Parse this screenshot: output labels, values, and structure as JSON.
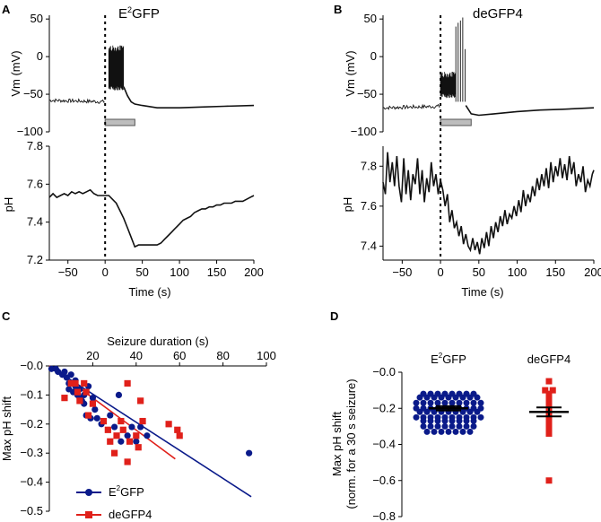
{
  "panels": {
    "A": {
      "letter": "A",
      "title_main": "E",
      "title_sup": "2",
      "title_rest": "GFP"
    },
    "B": {
      "letter": "B",
      "title": "deGFP4"
    },
    "C": {
      "letter": "C"
    },
    "D": {
      "letter": "D"
    }
  },
  "chart_data": [
    {
      "panel": "A-top",
      "type": "line",
      "ylabel": "Vm (mV)",
      "yticks": [
        -100,
        -50,
        0,
        50
      ],
      "ylim": [
        -100,
        55
      ],
      "xlim": [
        -75,
        200
      ],
      "baseline": [
        [
          -75,
          -58
        ],
        [
          -20,
          -58
        ],
        [
          -2,
          -59
        ],
        [
          0,
          -60
        ]
      ],
      "burst_range": [
        5,
        25
      ],
      "burst_high": 15,
      "burst_low": -45,
      "recovery": [
        [
          25,
          -40
        ],
        [
          30,
          -52
        ],
        [
          35,
          -60
        ],
        [
          40,
          -63
        ],
        [
          50,
          -65
        ],
        [
          70,
          -68
        ],
        [
          100,
          -68
        ],
        [
          130,
          -67
        ],
        [
          160,
          -66
        ],
        [
          200,
          -65
        ]
      ],
      "bar_range": [
        0,
        40
      ],
      "seizure_onset": 0
    },
    {
      "panel": "A-bottom",
      "type": "line",
      "ylabel": "pH",
      "xlabel": "Time (s)",
      "yticks": [
        7.2,
        7.4,
        7.6,
        7.8
      ],
      "xticks": [
        -50,
        0,
        50,
        100,
        150,
        200
      ],
      "ylim": [
        7.2,
        7.8
      ],
      "xlim": [
        -75,
        200
      ],
      "points": [
        [
          -75,
          7.53
        ],
        [
          -70,
          7.55
        ],
        [
          -65,
          7.53
        ],
        [
          -60,
          7.54
        ],
        [
          -55,
          7.55
        ],
        [
          -50,
          7.54
        ],
        [
          -45,
          7.56
        ],
        [
          -40,
          7.55
        ],
        [
          -35,
          7.56
        ],
        [
          -30,
          7.55
        ],
        [
          -25,
          7.56
        ],
        [
          -20,
          7.57
        ],
        [
          -15,
          7.55
        ],
        [
          -10,
          7.54
        ],
        [
          -5,
          7.54
        ],
        [
          0,
          7.54
        ],
        [
          5,
          7.54
        ],
        [
          10,
          7.52
        ],
        [
          15,
          7.5
        ],
        [
          20,
          7.46
        ],
        [
          25,
          7.42
        ],
        [
          30,
          7.37
        ],
        [
          35,
          7.32
        ],
        [
          40,
          7.27
        ],
        [
          45,
          7.28
        ],
        [
          50,
          7.28
        ],
        [
          55,
          7.28
        ],
        [
          60,
          7.28
        ],
        [
          65,
          7.28
        ],
        [
          70,
          7.28
        ],
        [
          75,
          7.29
        ],
        [
          80,
          7.31
        ],
        [
          85,
          7.33
        ],
        [
          90,
          7.35
        ],
        [
          95,
          7.37
        ],
        [
          100,
          7.39
        ],
        [
          105,
          7.41
        ],
        [
          110,
          7.42
        ],
        [
          115,
          7.43
        ],
        [
          120,
          7.45
        ],
        [
          125,
          7.46
        ],
        [
          130,
          7.47
        ],
        [
          135,
          7.47
        ],
        [
          140,
          7.48
        ],
        [
          145,
          7.48
        ],
        [
          150,
          7.49
        ],
        [
          155,
          7.49
        ],
        [
          160,
          7.5
        ],
        [
          165,
          7.5
        ],
        [
          170,
          7.5
        ],
        [
          175,
          7.51
        ],
        [
          180,
          7.51
        ],
        [
          185,
          7.51
        ],
        [
          190,
          7.52
        ],
        [
          195,
          7.53
        ],
        [
          200,
          7.54
        ]
      ]
    },
    {
      "panel": "B-top",
      "type": "line",
      "ylabel": "Vm (mV)",
      "yticks": [
        -100,
        -50,
        0,
        50
      ],
      "ylim": [
        -100,
        55
      ],
      "xlim": [
        -75,
        200
      ],
      "baseline": [
        [
          -75,
          -68
        ],
        [
          -20,
          -68
        ],
        [
          -2,
          -67
        ],
        [
          0,
          -66
        ]
      ],
      "burst_range": [
        0,
        20
      ],
      "burst_high": -20,
      "burst_low": -55,
      "spikes": [
        [
          20,
          40
        ],
        [
          23,
          45
        ],
        [
          26,
          48
        ],
        [
          29,
          52
        ],
        [
          32,
          10
        ]
      ],
      "recovery": [
        [
          33,
          -65
        ],
        [
          40,
          -76
        ],
        [
          50,
          -78
        ],
        [
          70,
          -76
        ],
        [
          100,
          -73
        ],
        [
          130,
          -71
        ],
        [
          160,
          -70
        ],
        [
          200,
          -68
        ]
      ],
      "bar_range": [
        0,
        40
      ],
      "seizure_onset": 0
    },
    {
      "panel": "B-bottom",
      "type": "line",
      "ylabel": "pH",
      "xlabel": "Time (s)",
      "yticks": [
        7.4,
        7.6,
        7.8
      ],
      "xticks": [
        -50,
        0,
        50,
        100,
        150,
        200
      ],
      "ylim": [
        7.33,
        7.9
      ],
      "xlim": [
        -75,
        200
      ],
      "points": [
        [
          -75,
          7.72
        ],
        [
          -72,
          7.66
        ],
        [
          -69,
          7.87
        ],
        [
          -66,
          7.72
        ],
        [
          -63,
          7.82
        ],
        [
          -60,
          7.7
        ],
        [
          -57,
          7.85
        ],
        [
          -54,
          7.7
        ],
        [
          -51,
          7.62
        ],
        [
          -48,
          7.84
        ],
        [
          -45,
          7.66
        ],
        [
          -42,
          7.78
        ],
        [
          -39,
          7.63
        ],
        [
          -36,
          7.76
        ],
        [
          -33,
          7.71
        ],
        [
          -30,
          7.84
        ],
        [
          -27,
          7.66
        ],
        [
          -24,
          7.78
        ],
        [
          -21,
          7.62
        ],
        [
          -18,
          7.74
        ],
        [
          -15,
          7.67
        ],
        [
          -12,
          7.82
        ],
        [
          -9,
          7.7
        ],
        [
          -6,
          7.76
        ],
        [
          -3,
          7.66
        ],
        [
          0,
          7.73
        ],
        [
          3,
          7.68
        ],
        [
          6,
          7.6
        ],
        [
          9,
          7.66
        ],
        [
          12,
          7.52
        ],
        [
          15,
          7.58
        ],
        [
          18,
          7.49
        ],
        [
          21,
          7.52
        ],
        [
          24,
          7.45
        ],
        [
          27,
          7.5
        ],
        [
          30,
          7.41
        ],
        [
          33,
          7.46
        ],
        [
          36,
          7.4
        ],
        [
          39,
          7.38
        ],
        [
          42,
          7.44
        ],
        [
          45,
          7.38
        ],
        [
          48,
          7.42
        ],
        [
          51,
          7.36
        ],
        [
          54,
          7.44
        ],
        [
          57,
          7.39
        ],
        [
          60,
          7.47
        ],
        [
          63,
          7.4
        ],
        [
          66,
          7.5
        ],
        [
          69,
          7.44
        ],
        [
          72,
          7.52
        ],
        [
          75,
          7.47
        ],
        [
          78,
          7.55
        ],
        [
          81,
          7.5
        ],
        [
          84,
          7.58
        ],
        [
          87,
          7.51
        ],
        [
          90,
          7.56
        ],
        [
          93,
          7.54
        ],
        [
          96,
          7.6
        ],
        [
          99,
          7.55
        ],
        [
          102,
          7.63
        ],
        [
          105,
          7.57
        ],
        [
          108,
          7.68
        ],
        [
          111,
          7.6
        ],
        [
          114,
          7.66
        ],
        [
          117,
          7.62
        ],
        [
          120,
          7.7
        ],
        [
          123,
          7.65
        ],
        [
          126,
          7.74
        ],
        [
          129,
          7.68
        ],
        [
          132,
          7.76
        ],
        [
          135,
          7.7
        ],
        [
          138,
          7.79
        ],
        [
          141,
          7.69
        ],
        [
          144,
          7.82
        ],
        [
          147,
          7.72
        ],
        [
          150,
          7.8
        ],
        [
          153,
          7.75
        ],
        [
          156,
          7.84
        ],
        [
          159,
          7.74
        ],
        [
          162,
          7.81
        ],
        [
          165,
          7.73
        ],
        [
          168,
          7.85
        ],
        [
          171,
          7.76
        ],
        [
          174,
          7.82
        ],
        [
          177,
          7.7
        ],
        [
          180,
          7.76
        ],
        [
          183,
          7.72
        ],
        [
          186,
          7.8
        ],
        [
          189,
          7.67
        ],
        [
          192,
          7.73
        ],
        [
          195,
          7.7
        ],
        [
          198,
          7.76
        ],
        [
          200,
          7.78
        ]
      ]
    },
    {
      "panel": "C",
      "type": "scatter",
      "xlabel": "Seizure duration (s)",
      "ylabel": "Max pH shift",
      "xticks": [
        20,
        40,
        60,
        80,
        100
      ],
      "yticks": [
        -0.0,
        -0.1,
        -0.2,
        -0.3,
        -0.4,
        -0.5
      ],
      "xlim": [
        0,
        100
      ],
      "ylim": [
        -0.5,
        0
      ],
      "series": [
        {
          "name": "E²GFP",
          "legend_main": "E",
          "legend_sup": "2",
          "legend_rest": "GFP",
          "color": "#0a1a8a",
          "marker": "circle",
          "points": [
            [
              1,
              -0.01
            ],
            [
              3,
              -0.01
            ],
            [
              4,
              -0.02
            ],
            [
              6,
              -0.03
            ],
            [
              7,
              -0.02
            ],
            [
              8,
              -0.04
            ],
            [
              9,
              -0.06
            ],
            [
              9,
              -0.08
            ],
            [
              10,
              -0.03
            ],
            [
              11,
              -0.09
            ],
            [
              12,
              -0.05
            ],
            [
              12,
              -0.07
            ],
            [
              13,
              -0.1
            ],
            [
              14,
              -0.11
            ],
            [
              14,
              -0.08
            ],
            [
              15,
              -0.12
            ],
            [
              16,
              -0.1
            ],
            [
              16,
              -0.13
            ],
            [
              17,
              -0.17
            ],
            [
              18,
              -0.07
            ],
            [
              19,
              -0.18
            ],
            [
              20,
              -0.11
            ],
            [
              21,
              -0.15
            ],
            [
              22,
              -0.18
            ],
            [
              24,
              -0.2
            ],
            [
              28,
              -0.17
            ],
            [
              30,
              -0.21
            ],
            [
              32,
              -0.1
            ],
            [
              33,
              -0.26
            ],
            [
              36,
              -0.24
            ],
            [
              38,
              -0.21
            ],
            [
              40,
              -0.26
            ],
            [
              42,
              -0.21
            ],
            [
              45,
              -0.24
            ],
            [
              92,
              -0.3
            ]
          ],
          "fit": [
            [
              0,
              0
            ],
            [
              93,
              -0.45
            ]
          ]
        },
        {
          "name": "deGFP4",
          "color": "#e0201a",
          "marker": "square",
          "points": [
            [
              7,
              -0.11
            ],
            [
              10,
              -0.06
            ],
            [
              12,
              -0.06
            ],
            [
              13,
              -0.09
            ],
            [
              14,
              -0.12
            ],
            [
              16,
              -0.06
            ],
            [
              17,
              -0.09
            ],
            [
              18,
              -0.17
            ],
            [
              20,
              -0.13
            ],
            [
              25,
              -0.19
            ],
            [
              27,
              -0.22
            ],
            [
              28,
              -0.26
            ],
            [
              30,
              -0.3
            ],
            [
              31,
              -0.24
            ],
            [
              33,
              -0.19
            ],
            [
              34,
              -0.22
            ],
            [
              36,
              -0.06
            ],
            [
              36,
              -0.33
            ],
            [
              37,
              -0.26
            ],
            [
              40,
              -0.24
            ],
            [
              41,
              -0.28
            ],
            [
              42,
              -0.12
            ],
            [
              43,
              -0.19
            ],
            [
              55,
              -0.2
            ],
            [
              59,
              -0.22
            ],
            [
              60,
              -0.24
            ]
          ],
          "fit": [
            [
              0,
              0
            ],
            [
              58,
              -0.32
            ]
          ]
        }
      ]
    },
    {
      "panel": "D",
      "type": "scatter",
      "ylabel": "Max pH shift",
      "ylabel2": "(norm. for a 30 s seizure)",
      "categories": [
        "E²GFP",
        "deGFP4"
      ],
      "cat_label_parts": [
        {
          "main": "E",
          "sup": "2",
          "rest": "GFP"
        },
        {
          "main": "deGFP4",
          "sup": "",
          "rest": ""
        }
      ],
      "yticks": [
        -0.0,
        -0.2,
        -0.4,
        -0.6,
        -0.8
      ],
      "ylim": [
        -0.8,
        0
      ],
      "groups": [
        {
          "name": "E²GFP",
          "color": "#0a1a8a",
          "marker": "circle",
          "mean": -0.2,
          "sem": 0.012,
          "values": [
            -0.12,
            -0.12,
            -0.12,
            -0.12,
            -0.12,
            -0.12,
            -0.12,
            -0.12,
            -0.14,
            -0.14,
            -0.14,
            -0.14,
            -0.14,
            -0.14,
            -0.14,
            -0.14,
            -0.14,
            -0.17,
            -0.17,
            -0.17,
            -0.17,
            -0.17,
            -0.17,
            -0.17,
            -0.17,
            -0.17,
            -0.17,
            -0.2,
            -0.2,
            -0.2,
            -0.2,
            -0.2,
            -0.2,
            -0.2,
            -0.2,
            -0.2,
            -0.2,
            -0.22,
            -0.22,
            -0.22,
            -0.22,
            -0.22,
            -0.22,
            -0.22,
            -0.22,
            -0.22,
            -0.25,
            -0.25,
            -0.25,
            -0.25,
            -0.25,
            -0.25,
            -0.25,
            -0.25,
            -0.25,
            -0.25,
            -0.27,
            -0.27,
            -0.27,
            -0.27,
            -0.27,
            -0.27,
            -0.27,
            -0.27,
            -0.3,
            -0.3,
            -0.3,
            -0.3,
            -0.3,
            -0.3,
            -0.3,
            -0.3,
            -0.33,
            -0.33,
            -0.33,
            -0.33,
            -0.33,
            -0.33,
            -0.33
          ]
        },
        {
          "name": "deGFP4",
          "color": "#e0201a",
          "marker": "square",
          "mean": -0.22,
          "sem": 0.025,
          "values": [
            -0.05,
            -0.1,
            -0.1,
            -0.12,
            -0.13,
            -0.15,
            -0.16,
            -0.17,
            -0.18,
            -0.19,
            -0.2,
            -0.21,
            -0.22,
            -0.23,
            -0.24,
            -0.25,
            -0.26,
            -0.27,
            -0.29,
            -0.3,
            -0.32,
            -0.34,
            -0.6
          ]
        }
      ]
    }
  ]
}
